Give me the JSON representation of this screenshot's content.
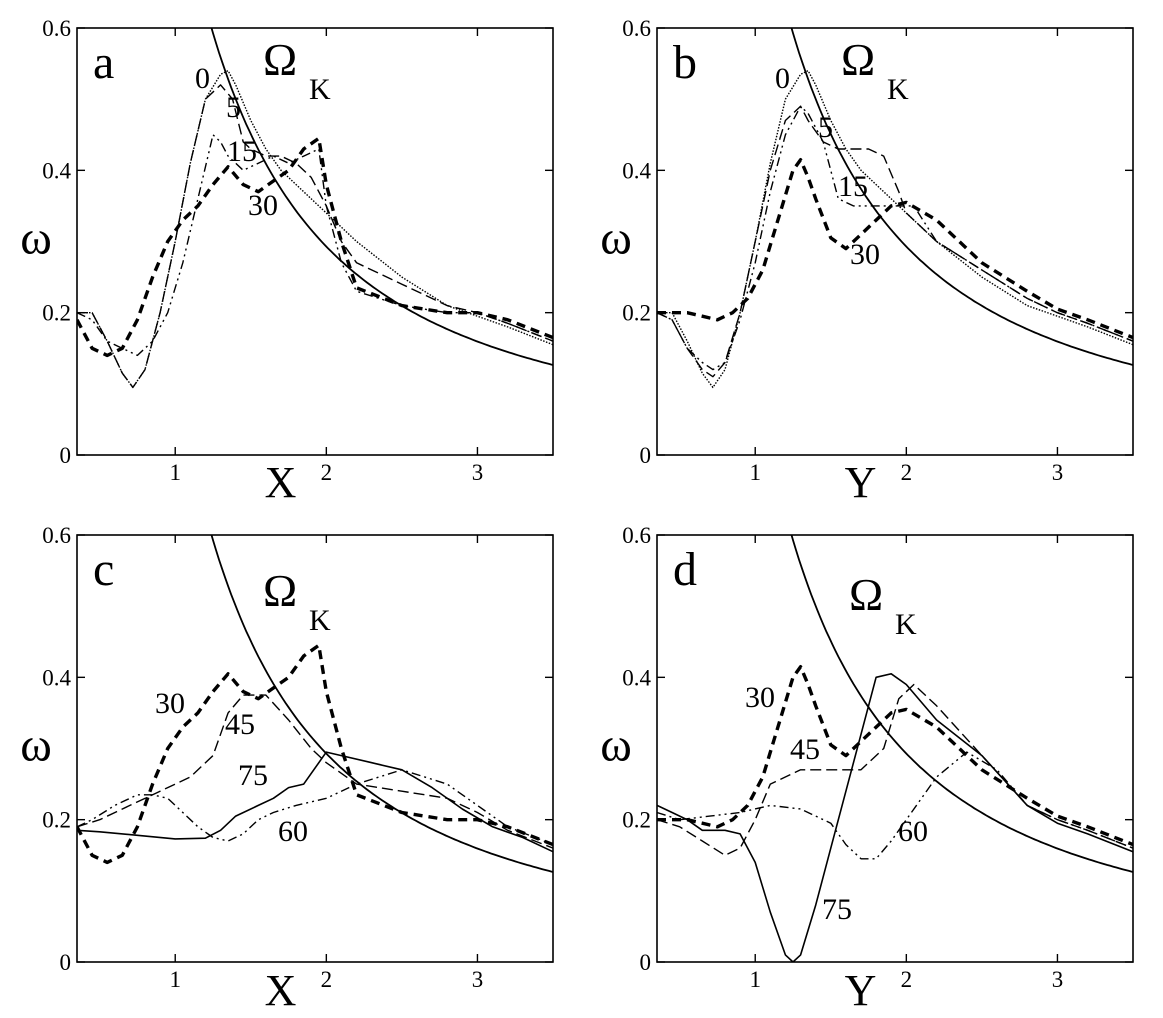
{
  "chart_data": [
    {
      "panel": "a",
      "type": "line",
      "xlabel": "X",
      "ylabel": "ω",
      "xlim": [
        0.35,
        3.5
      ],
      "ylim": [
        0,
        0.6
      ],
      "xticks": [
        "1",
        "2",
        "3"
      ],
      "yticks": [
        "0",
        "0.2",
        "0.4",
        "0.6"
      ],
      "kepler_label": "Ω",
      "kepler_sub": "K",
      "series": [
        {
          "name": "0",
          "style": "dotted-thin",
          "x": [
            0.35,
            0.45,
            0.55,
            0.65,
            0.72,
            0.8,
            0.9,
            1.0,
            1.1,
            1.2,
            1.3,
            1.35,
            1.4,
            1.5,
            1.6,
            1.7,
            1.8,
            1.9,
            2.0,
            2.2,
            2.5,
            2.8,
            3.0,
            3.2,
            3.5
          ],
          "y": [
            0.2,
            0.2,
            0.16,
            0.115,
            0.095,
            0.12,
            0.2,
            0.3,
            0.41,
            0.5,
            0.535,
            0.54,
            0.52,
            0.47,
            0.43,
            0.4,
            0.38,
            0.36,
            0.34,
            0.3,
            0.25,
            0.21,
            0.195,
            0.18,
            0.155
          ]
        },
        {
          "name": "5",
          "style": "dashed-thin",
          "x": [
            0.35,
            0.45,
            0.55,
            0.65,
            0.72,
            0.8,
            0.9,
            1.0,
            1.1,
            1.2,
            1.3,
            1.38,
            1.45,
            1.5,
            1.6,
            1.7,
            1.8,
            1.9,
            2.0,
            2.1,
            2.2,
            2.5,
            2.8,
            3.0,
            3.2,
            3.5
          ],
          "y": [
            0.2,
            0.2,
            0.16,
            0.115,
            0.095,
            0.12,
            0.2,
            0.3,
            0.41,
            0.5,
            0.52,
            0.5,
            0.44,
            0.43,
            0.42,
            0.42,
            0.41,
            0.39,
            0.35,
            0.3,
            0.27,
            0.24,
            0.21,
            0.2,
            0.185,
            0.16
          ]
        },
        {
          "name": "15",
          "style": "dashdot-thin",
          "x": [
            0.35,
            0.45,
            0.55,
            0.65,
            0.75,
            0.85,
            0.95,
            1.05,
            1.15,
            1.25,
            1.3,
            1.35,
            1.45,
            1.55,
            1.65,
            1.75,
            1.85,
            1.95,
            2.0,
            2.1,
            2.2,
            2.5,
            2.8,
            3.0,
            3.2,
            3.5
          ],
          "y": [
            0.2,
            0.19,
            0.16,
            0.15,
            0.14,
            0.16,
            0.2,
            0.27,
            0.36,
            0.45,
            0.44,
            0.42,
            0.4,
            0.41,
            0.42,
            0.41,
            0.42,
            0.43,
            0.35,
            0.27,
            0.23,
            0.21,
            0.2,
            0.2,
            0.185,
            0.16
          ]
        },
        {
          "name": "30",
          "style": "dashed-thick",
          "x": [
            0.35,
            0.45,
            0.55,
            0.65,
            0.75,
            0.85,
            0.95,
            1.05,
            1.15,
            1.25,
            1.35,
            1.45,
            1.55,
            1.65,
            1.75,
            1.85,
            1.95,
            2.0,
            2.1,
            2.2,
            2.5,
            2.8,
            3.0,
            3.2,
            3.5
          ],
          "y": [
            0.19,
            0.15,
            0.14,
            0.15,
            0.19,
            0.25,
            0.3,
            0.33,
            0.35,
            0.38,
            0.405,
            0.38,
            0.37,
            0.385,
            0.4,
            0.43,
            0.445,
            0.38,
            0.3,
            0.235,
            0.21,
            0.2,
            0.2,
            0.19,
            0.165
          ]
        }
      ],
      "curve_labels": [
        {
          "text": "0",
          "x": 0.53,
          "y": 0.53
        },
        {
          "text": "5",
          "x": 0.58,
          "y": 0.48
        },
        {
          "text": "15",
          "x": 0.62,
          "y": 0.415
        },
        {
          "text": "30",
          "x": 0.67,
          "y": 0.355
        }
      ],
      "letter_pos": {
        "x": 0.48,
        "y": 0.545
      },
      "omega_pos": {
        "x": 0.88,
        "y": 0.535
      }
    },
    {
      "panel": "b",
      "type": "line",
      "xlabel": "Y",
      "ylabel": "ω",
      "xlim": [
        0.35,
        3.5
      ],
      "ylim": [
        0,
        0.6
      ],
      "xticks": [
        "1",
        "2",
        "3"
      ],
      "yticks": [
        "0",
        "0.2",
        "0.4",
        "0.6"
      ],
      "kepler_label": "Ω",
      "kepler_sub": "K",
      "series": [
        {
          "name": "0",
          "style": "dotted-thin",
          "x": [
            0.35,
            0.45,
            0.55,
            0.65,
            0.72,
            0.8,
            0.9,
            1.0,
            1.1,
            1.2,
            1.3,
            1.35,
            1.4,
            1.5,
            1.6,
            1.7,
            1.8,
            1.9,
            2.0,
            2.2,
            2.5,
            2.8,
            3.0,
            3.2,
            3.5
          ],
          "y": [
            0.2,
            0.2,
            0.16,
            0.115,
            0.095,
            0.12,
            0.2,
            0.3,
            0.41,
            0.5,
            0.535,
            0.54,
            0.52,
            0.47,
            0.43,
            0.4,
            0.38,
            0.36,
            0.34,
            0.3,
            0.25,
            0.21,
            0.195,
            0.18,
            0.155
          ]
        },
        {
          "name": "5",
          "style": "dashed-thin",
          "x": [
            0.35,
            0.45,
            0.55,
            0.65,
            0.72,
            0.8,
            0.9,
            1.0,
            1.1,
            1.2,
            1.3,
            1.35,
            1.45,
            1.55,
            1.65,
            1.75,
            1.85,
            1.95,
            2.0,
            2.2,
            2.5,
            2.8,
            3.0,
            3.2,
            3.5
          ],
          "y": [
            0.2,
            0.19,
            0.15,
            0.12,
            0.11,
            0.13,
            0.2,
            0.3,
            0.4,
            0.47,
            0.49,
            0.47,
            0.44,
            0.43,
            0.43,
            0.43,
            0.42,
            0.37,
            0.34,
            0.3,
            0.26,
            0.22,
            0.2,
            0.185,
            0.16
          ]
        },
        {
          "name": "15",
          "style": "dashdot-thin",
          "x": [
            0.35,
            0.45,
            0.55,
            0.65,
            0.72,
            0.8,
            0.9,
            1.0,
            1.1,
            1.2,
            1.3,
            1.35,
            1.45,
            1.55,
            1.65,
            1.75,
            1.85,
            1.95,
            2.05,
            2.2,
            2.5,
            2.8,
            3.0,
            3.2,
            3.5
          ],
          "y": [
            0.2,
            0.19,
            0.15,
            0.13,
            0.12,
            0.13,
            0.19,
            0.27,
            0.37,
            0.45,
            0.49,
            0.48,
            0.44,
            0.36,
            0.35,
            0.35,
            0.35,
            0.35,
            0.35,
            0.3,
            0.26,
            0.22,
            0.2,
            0.185,
            0.16
          ]
        },
        {
          "name": "30",
          "style": "dashed-thick",
          "x": [
            0.35,
            0.45,
            0.55,
            0.65,
            0.75,
            0.85,
            0.95,
            1.05,
            1.15,
            1.25,
            1.3,
            1.35,
            1.4,
            1.5,
            1.6,
            1.7,
            1.8,
            1.9,
            2.0,
            2.2,
            2.5,
            2.8,
            3.0,
            3.2,
            3.5
          ],
          "y": [
            0.2,
            0.2,
            0.2,
            0.195,
            0.19,
            0.2,
            0.22,
            0.26,
            0.33,
            0.4,
            0.415,
            0.39,
            0.36,
            0.305,
            0.29,
            0.31,
            0.33,
            0.35,
            0.355,
            0.33,
            0.27,
            0.23,
            0.205,
            0.19,
            0.165
          ]
        }
      ],
      "curve_labels": [
        {
          "text": "0",
          "x": 0.53,
          "y": 0.53
        },
        {
          "text": "5",
          "x": 0.58,
          "y": 0.455
        },
        {
          "text": "15",
          "x": 0.62,
          "y": 0.365
        },
        {
          "text": "30",
          "x": 0.67,
          "y": 0.275
        }
      ],
      "letter_pos": {
        "x": 0.48,
        "y": 0.545
      },
      "omega_pos": {
        "x": 0.88,
        "y": 0.535
      }
    },
    {
      "panel": "c",
      "type": "line",
      "xlabel": "X",
      "ylabel": "ω",
      "xlim": [
        0.35,
        3.5
      ],
      "ylim": [
        0,
        0.6
      ],
      "xticks": [
        "1",
        "2",
        "3"
      ],
      "yticks": [
        "0",
        "0.2",
        "0.4",
        "0.6"
      ],
      "kepler_label": "Ω",
      "kepler_sub": "K",
      "series": [
        {
          "name": "30",
          "style": "dashed-thick",
          "x": [
            0.35,
            0.45,
            0.55,
            0.65,
            0.75,
            0.85,
            0.95,
            1.05,
            1.15,
            1.25,
            1.35,
            1.45,
            1.55,
            1.65,
            1.75,
            1.85,
            1.95,
            2.0,
            2.1,
            2.2,
            2.5,
            2.8,
            3.0,
            3.2,
            3.5
          ],
          "y": [
            0.19,
            0.15,
            0.14,
            0.15,
            0.19,
            0.25,
            0.3,
            0.33,
            0.35,
            0.38,
            0.405,
            0.38,
            0.37,
            0.385,
            0.4,
            0.43,
            0.445,
            0.38,
            0.3,
            0.235,
            0.21,
            0.2,
            0.2,
            0.19,
            0.165
          ]
        },
        {
          "name": "45",
          "style": "dashed-thin",
          "x": [
            0.35,
            0.5,
            0.7,
            0.9,
            1.1,
            1.25,
            1.35,
            1.45,
            1.6,
            1.75,
            1.9,
            2.0,
            2.2,
            2.5,
            2.8,
            3.0,
            3.2,
            3.5
          ],
          "y": [
            0.19,
            0.2,
            0.22,
            0.24,
            0.26,
            0.29,
            0.35,
            0.375,
            0.375,
            0.34,
            0.3,
            0.28,
            0.25,
            0.24,
            0.23,
            0.21,
            0.185,
            0.16
          ]
        },
        {
          "name": "60",
          "style": "dashdot-thin",
          "x": [
            0.35,
            0.45,
            0.6,
            0.75,
            0.85,
            0.95,
            1.05,
            1.15,
            1.25,
            1.35,
            1.45,
            1.55,
            1.65,
            1.8,
            2.0,
            2.2,
            2.5,
            2.8,
            3.0,
            3.2,
            3.5
          ],
          "y": [
            0.19,
            0.2,
            0.22,
            0.235,
            0.235,
            0.23,
            0.21,
            0.19,
            0.175,
            0.17,
            0.18,
            0.2,
            0.21,
            0.22,
            0.23,
            0.25,
            0.27,
            0.25,
            0.22,
            0.19,
            0.165
          ]
        },
        {
          "name": "75",
          "style": "solid-thin",
          "x": [
            0.35,
            0.5,
            0.75,
            1.0,
            1.2,
            1.3,
            1.4,
            1.55,
            1.65,
            1.75,
            1.85,
            2.0,
            2.1,
            2.3,
            2.5,
            2.7,
            2.9,
            3.1,
            3.3,
            3.5
          ],
          "y": [
            0.185,
            0.183,
            0.178,
            0.173,
            0.174,
            0.185,
            0.205,
            0.22,
            0.23,
            0.245,
            0.25,
            0.295,
            0.29,
            0.28,
            0.27,
            0.245,
            0.215,
            0.19,
            0.175,
            0.155
          ]
        }
      ],
      "curve_labels": [
        {
          "text": "30",
          "x": 0.155,
          "y": 0.355
        },
        {
          "text": "45",
          "x": 0.22,
          "y": 0.325
        },
        {
          "text": "75",
          "x": 0.24,
          "y": 0.255
        },
        {
          "text": "60",
          "x": 0.28,
          "y": 0.17
        }
      ],
      "letter_pos": {
        "x": 0.48,
        "y": 0.545
      },
      "omega_pos": {
        "x": 0.88,
        "y": 0.495
      }
    },
    {
      "panel": "d",
      "type": "line",
      "xlabel": "Y",
      "ylabel": "ω",
      "xlim": [
        0.35,
        3.5
      ],
      "ylim": [
        0,
        0.6
      ],
      "xticks": [
        "1",
        "2",
        "3"
      ],
      "yticks": [
        "0",
        "0.2",
        "0.4",
        "0.6"
      ],
      "kepler_label": "Ω",
      "kepler_sub": "K",
      "series": [
        {
          "name": "30",
          "style": "dashed-thick",
          "x": [
            0.35,
            0.45,
            0.55,
            0.65,
            0.75,
            0.85,
            0.95,
            1.05,
            1.15,
            1.25,
            1.3,
            1.35,
            1.4,
            1.5,
            1.6,
            1.7,
            1.8,
            1.9,
            2.0,
            2.2,
            2.5,
            2.8,
            3.0,
            3.2,
            3.5
          ],
          "y": [
            0.2,
            0.2,
            0.2,
            0.195,
            0.19,
            0.2,
            0.22,
            0.26,
            0.33,
            0.4,
            0.415,
            0.39,
            0.36,
            0.305,
            0.29,
            0.31,
            0.33,
            0.35,
            0.355,
            0.33,
            0.27,
            0.23,
            0.205,
            0.19,
            0.165
          ]
        },
        {
          "name": "45",
          "style": "dashed-thin",
          "x": [
            0.35,
            0.5,
            0.65,
            0.8,
            0.9,
            1.0,
            1.1,
            1.3,
            1.5,
            1.7,
            1.85,
            1.95,
            2.05,
            2.2,
            2.5,
            2.8,
            3.0,
            3.2,
            3.5
          ],
          "y": [
            0.2,
            0.19,
            0.17,
            0.15,
            0.16,
            0.2,
            0.25,
            0.27,
            0.27,
            0.27,
            0.3,
            0.37,
            0.39,
            0.36,
            0.29,
            0.22,
            0.2,
            0.185,
            0.16
          ]
        },
        {
          "name": "60",
          "style": "dashdot-thin",
          "x": [
            0.35,
            0.5,
            0.7,
            0.9,
            1.1,
            1.3,
            1.5,
            1.6,
            1.7,
            1.8,
            1.9,
            2.0,
            2.2,
            2.4,
            2.6,
            2.8,
            3.0,
            3.2,
            3.5
          ],
          "y": [
            0.21,
            0.2,
            0.205,
            0.21,
            0.22,
            0.215,
            0.195,
            0.165,
            0.145,
            0.145,
            0.17,
            0.2,
            0.26,
            0.295,
            0.27,
            0.22,
            0.2,
            0.185,
            0.16
          ]
        },
        {
          "name": "75",
          "style": "solid-thin",
          "x": [
            0.35,
            0.45,
            0.55,
            0.65,
            0.8,
            0.9,
            1.0,
            1.1,
            1.2,
            1.25,
            1.3,
            1.4,
            1.5,
            1.6,
            1.7,
            1.8,
            1.9,
            2.0,
            2.2,
            2.5,
            2.8,
            3.0,
            3.2,
            3.5
          ],
          "y": [
            0.22,
            0.21,
            0.2,
            0.185,
            0.185,
            0.18,
            0.14,
            0.07,
            0.01,
            0.0,
            0.01,
            0.08,
            0.16,
            0.24,
            0.32,
            0.4,
            0.405,
            0.39,
            0.34,
            0.29,
            0.22,
            0.195,
            0.18,
            0.155
          ]
        }
      ],
      "curve_labels": [
        {
          "text": "30",
          "x": 0.155,
          "y": 0.355
        },
        {
          "text": "45",
          "x": 0.22,
          "y": 0.3
        },
        {
          "text": "60",
          "x": 0.6,
          "y": 0.17
        },
        {
          "text": "75",
          "x": 0.35,
          "y": 0.085
        }
      ],
      "letter_pos": {
        "x": 0.48,
        "y": 0.545
      },
      "omega_pos": {
        "x": 0.88,
        "y": 0.495
      }
    }
  ]
}
